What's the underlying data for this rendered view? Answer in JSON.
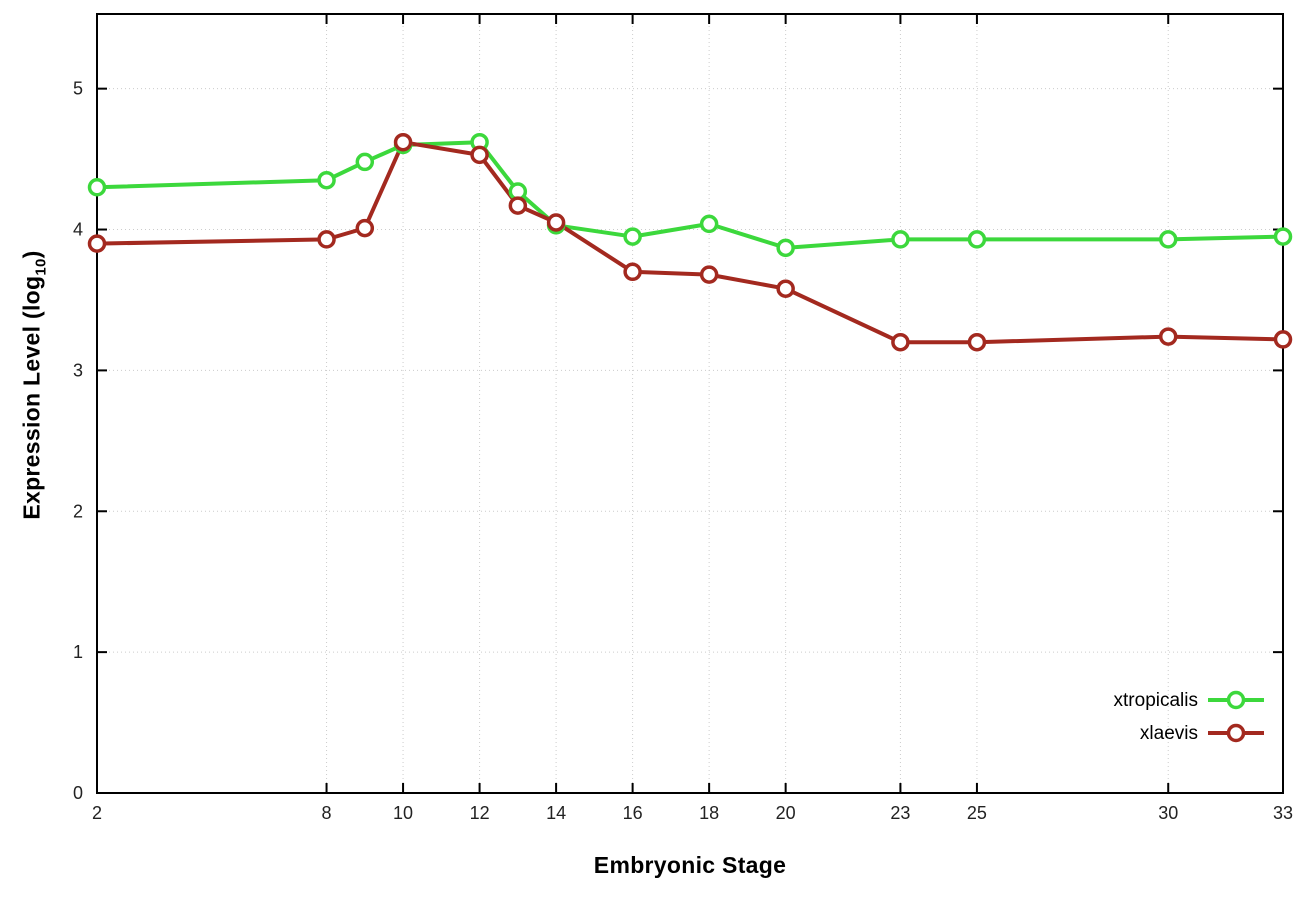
{
  "chart_data": {
    "type": "line",
    "title": "",
    "xlabel": "Embryonic Stage",
    "ylabel": "Expression Level (log10)",
    "ylabel_prefix": "Expression Level (log",
    "ylabel_sub": "10",
    "ylabel_suffix": ")",
    "x_ticks": [
      2,
      8,
      10,
      12,
      14,
      16,
      18,
      20,
      23,
      25,
      30,
      33
    ],
    "y_ticks": [
      0,
      1,
      2,
      3,
      4,
      5
    ],
    "xlim": [
      2,
      33
    ],
    "ylim": [
      0,
      5.53
    ],
    "grid": true,
    "legend_position": "inside-bottom-right",
    "x": [
      2,
      8,
      9,
      10,
      12,
      13,
      14,
      16,
      18,
      20,
      23,
      25,
      30,
      33
    ],
    "series": [
      {
        "name": "xtropicalis",
        "color": "#3cd83c",
        "values": [
          4.3,
          4.35,
          4.48,
          4.6,
          4.62,
          4.27,
          4.03,
          3.95,
          4.04,
          3.87,
          3.93,
          3.93,
          3.93,
          3.95
        ]
      },
      {
        "name": "xlaevis",
        "color": "#a3291f",
        "values": [
          3.9,
          3.93,
          4.01,
          4.62,
          4.53,
          4.17,
          4.05,
          3.7,
          3.68,
          3.58,
          3.2,
          3.2,
          3.24,
          3.22
        ]
      }
    ],
    "axis_color": "#000000",
    "grid_color": "#cccccc",
    "tick_label_color": "#222222"
  }
}
